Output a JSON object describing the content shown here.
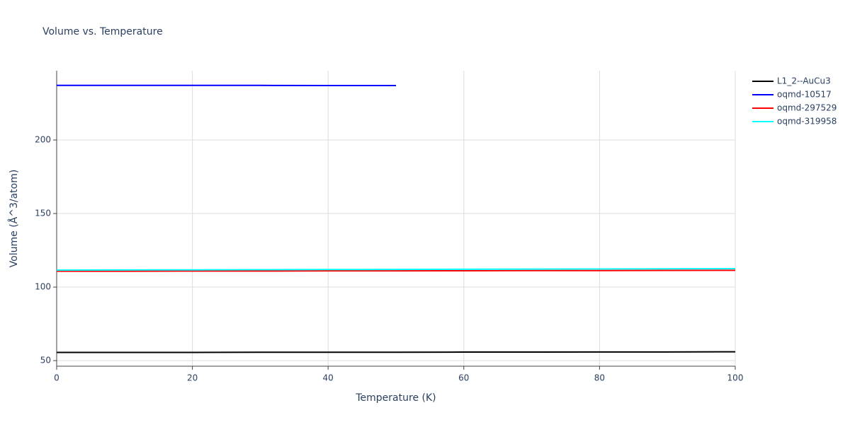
{
  "chart_data": {
    "type": "line",
    "title": "Volume vs. Temperature",
    "x_label": "Temperature (K)",
    "y_label": "Volume (Å^3/atom)",
    "x": [
      0,
      10,
      20,
      30,
      40,
      50,
      60,
      70,
      80,
      90,
      100
    ],
    "series": [
      {
        "name": "L1_2--AuCu3",
        "color": "#000000",
        "values": [
          55.6,
          55.6,
          55.6,
          55.7,
          55.7,
          55.7,
          55.8,
          55.8,
          55.9,
          55.9,
          56.0
        ]
      },
      {
        "name": "oqmd-10517",
        "color": "#0000ff",
        "values": [
          237.1,
          237.1,
          237.1,
          237.1,
          237.0,
          237.0,
          null,
          null,
          null,
          null,
          null
        ]
      },
      {
        "name": "oqmd-297529",
        "color": "#ff0000",
        "values": [
          110.8,
          110.8,
          110.9,
          110.9,
          111.0,
          111.0,
          111.1,
          111.2,
          111.2,
          111.3,
          111.4
        ]
      },
      {
        "name": "oqmd-319958",
        "color": "#00ffff",
        "values": [
          111.5,
          111.6,
          111.7,
          111.8,
          111.9,
          112.0,
          112.1,
          112.2,
          112.3,
          112.4,
          112.5
        ]
      }
    ],
    "xlim": [
      0,
      100
    ],
    "xticks": [
      0,
      20,
      40,
      60,
      80,
      100
    ],
    "ylim": [
      46.2,
      247.1
    ],
    "yticks": [
      50,
      100,
      150,
      200
    ],
    "grid": true,
    "legend": "outside-right"
  }
}
